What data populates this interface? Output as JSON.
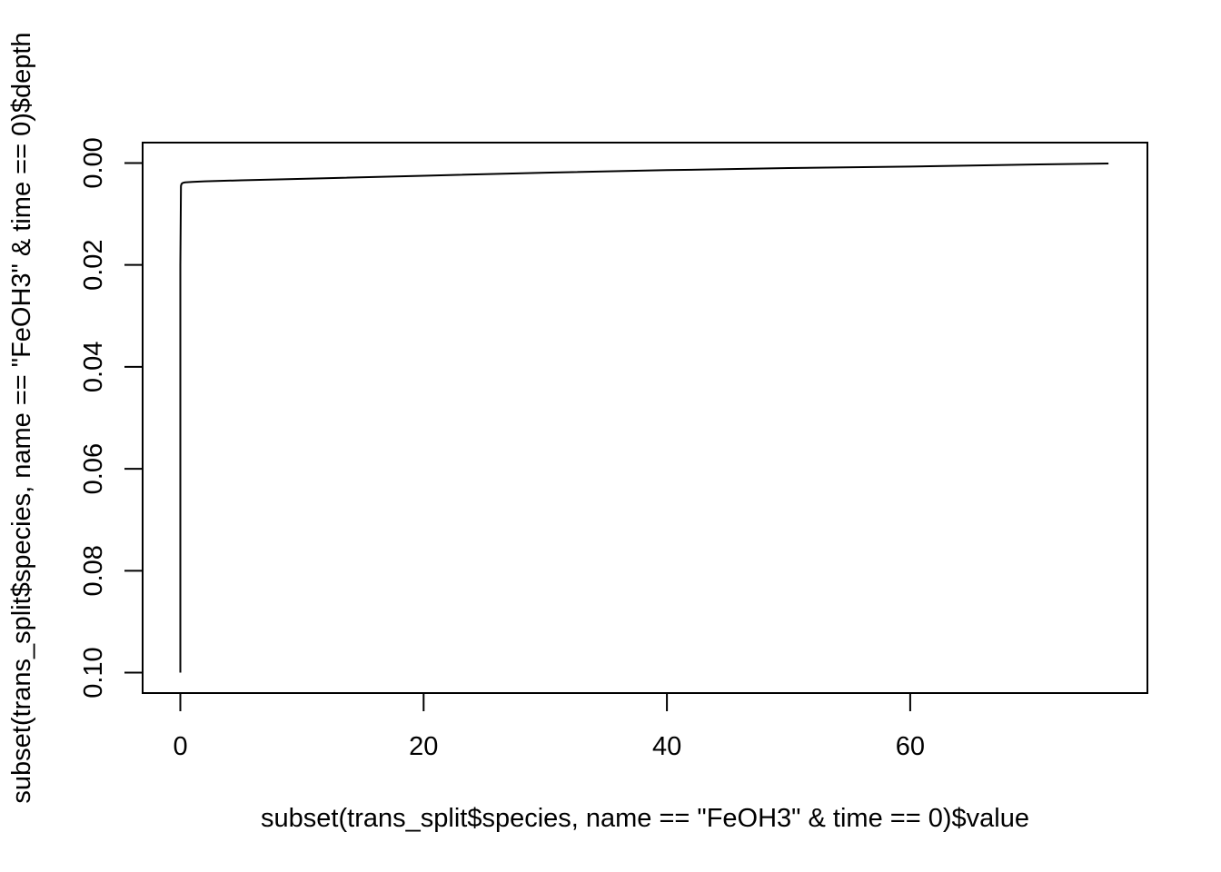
{
  "chart_data": {
    "type": "line",
    "title": "",
    "xlabel": "subset(trans_split$species, name == \"FeOH3\" & time == 0)$value",
    "ylabel": "subset(trans_split$species, name == \"FeOH3\" & time == 0)$depth",
    "xlim": [
      -3.1,
      79.5
    ],
    "ylim": [
      0.104,
      -0.004
    ],
    "y_reversed": true,
    "grid": false,
    "x_ticks": [
      0,
      20,
      40,
      60
    ],
    "x_tick_labels": [
      "0",
      "20",
      "40",
      "60"
    ],
    "y_ticks": [
      0.0,
      0.02,
      0.04,
      0.06,
      0.08,
      0.1
    ],
    "y_tick_labels": [
      "0.00",
      "0.02",
      "0.04",
      "0.06",
      "0.08",
      "0.10"
    ],
    "series": [
      {
        "color": "#000000",
        "x": [
          0.0,
          0.0,
          0.0,
          0.05,
          0.1,
          0.2,
          0.4,
          1.0,
          2.0,
          5.0,
          10.0,
          20.0,
          30.0,
          40.0,
          50.0,
          60.0,
          70.0,
          76.3
        ],
        "y": [
          0.1,
          0.06,
          0.02,
          0.0045,
          0.0041,
          0.0039,
          0.0038,
          0.0037,
          0.0036,
          0.0034,
          0.0031,
          0.0025,
          0.0019,
          0.0014,
          0.001,
          0.0007,
          0.0003,
          0.0001
        ]
      }
    ]
  }
}
